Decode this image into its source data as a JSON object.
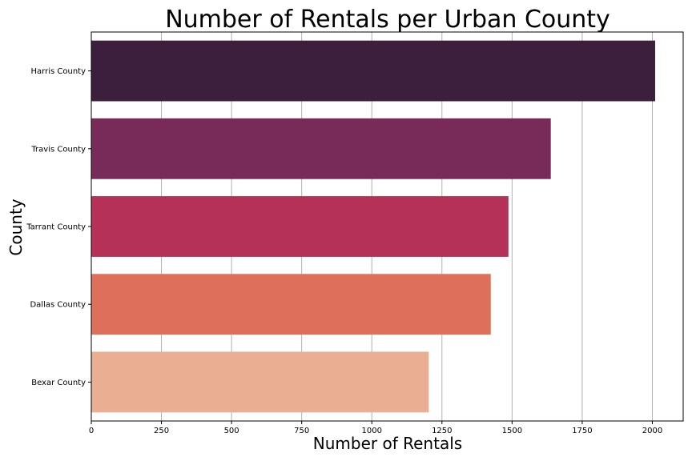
{
  "chart_data": {
    "type": "bar",
    "orientation": "horizontal",
    "title": "Number of Rentals per Urban County",
    "xlabel": "Number of Rentals",
    "ylabel": "County",
    "categories": [
      "Harris County",
      "Travis County",
      "Tarrant County",
      "Dallas County",
      "Bexar County"
    ],
    "values": [
      2010,
      1638,
      1487,
      1424,
      1203
    ],
    "colors": [
      "#3b1f3c",
      "#782a58",
      "#b53157",
      "#dd6f5b",
      "#eaaf92"
    ],
    "xlim": [
      0,
      2110
    ],
    "xticks": [
      0,
      250,
      500,
      750,
      1000,
      1250,
      1500,
      1750,
      2000
    ],
    "grid": "x"
  }
}
